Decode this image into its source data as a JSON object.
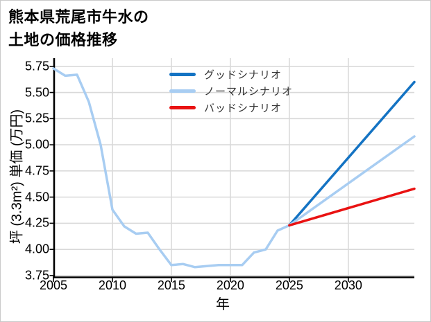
{
  "title": {
    "line1": "熊本県荒尾市牛水の",
    "line2": "土地の価格推移"
  },
  "chart_data": {
    "type": "line",
    "title": "熊本県荒尾市牛水の土地の価格推移",
    "xlabel": "年",
    "ylabel": "坪 (3.3m²) 単価 (万円)",
    "grid": true,
    "legend_position": "upper-center-inside",
    "xlim": [
      2005,
      2035.6
    ],
    "ylim": [
      3.733,
      5.828
    ],
    "x_ticks": [
      2005,
      2010,
      2015,
      2020,
      2025,
      2030
    ],
    "y_ticks": [
      3.75,
      4.0,
      4.25,
      4.5,
      4.75,
      5.0,
      5.25,
      5.5,
      5.75
    ],
    "history": {
      "color": "#a8cdf2",
      "years": [
        2005,
        2006,
        2007,
        2008,
        2009,
        2010,
        2011,
        2012,
        2013,
        2014,
        2015,
        2016,
        2017,
        2018,
        2019,
        2020,
        2021,
        2022,
        2023,
        2024,
        2025
      ],
      "values": [
        5.73,
        5.66,
        5.67,
        5.41,
        5.0,
        4.38,
        4.22,
        4.15,
        4.16,
        4.0,
        3.85,
        3.86,
        3.83,
        3.84,
        3.85,
        3.85,
        3.85,
        3.97,
        4.0,
        4.18,
        4.23
      ]
    },
    "scenarios": [
      {
        "label": "グッドシナリオ",
        "color": "#1473c3",
        "start_year": 2025,
        "start_value": 4.23,
        "end_year": 2035.6,
        "end_value": 5.6
      },
      {
        "label": "ノーマルシナリオ",
        "color": "#a8cdf2",
        "start_year": 2025,
        "start_value": 4.23,
        "end_year": 2035.6,
        "end_value": 5.08
      },
      {
        "label": "バッドシナリオ",
        "color": "#e91212",
        "start_year": 2025,
        "start_value": 4.23,
        "end_year": 2035.6,
        "end_value": 4.58
      }
    ],
    "colors": {
      "grid": "#d9d9d9",
      "axis": "#000000",
      "legend_text": "#333333"
    }
  }
}
